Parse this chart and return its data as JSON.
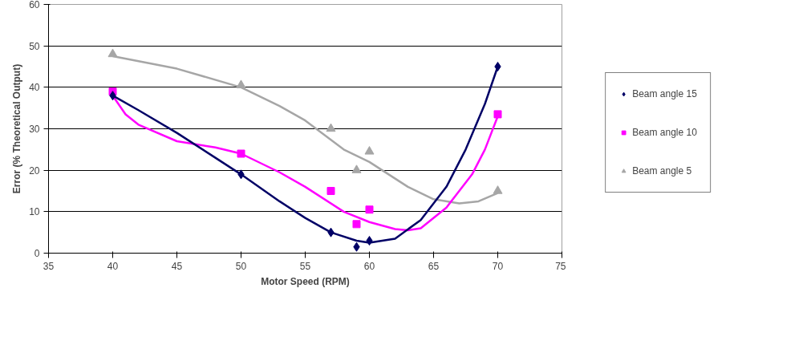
{
  "chart_data": {
    "type": "scatter",
    "xlabel": "Motor Speed (RPM)",
    "ylabel": "Error (% Theoretical Output)",
    "xlim": [
      35,
      75
    ],
    "ylim": [
      0,
      60
    ],
    "xticks": [
      35,
      40,
      45,
      50,
      55,
      60,
      65,
      70,
      75
    ],
    "yticks": [
      0,
      10,
      20,
      30,
      40,
      50,
      60
    ],
    "grid": "y",
    "legend": "right",
    "series": [
      {
        "name": "Beam angle 15",
        "color": "#000066",
        "marker": "diamond",
        "x": [
          40,
          50,
          57,
          59,
          60,
          70
        ],
        "values": [
          38,
          19,
          5,
          1.5,
          3,
          45
        ]
      },
      {
        "name": "Beam angle 10",
        "color": "#ff00ff",
        "marker": "square",
        "x": [
          40,
          50,
          57,
          59,
          60,
          70
        ],
        "values": [
          39,
          24,
          15,
          7,
          10.5,
          33.5
        ]
      },
      {
        "name": "Beam angle 5",
        "color": "#a6a6a6",
        "marker": "triangle",
        "x": [
          40,
          50,
          57,
          59,
          60,
          70
        ],
        "values": [
          48,
          40.5,
          30,
          20,
          24.5,
          15
        ]
      },
      {
        "type": "line",
        "color": "#000066",
        "line_style": "solid",
        "x": [
          40,
          42,
          45,
          48,
          50,
          53,
          55,
          57,
          59,
          60,
          62,
          64,
          65,
          66,
          67.5,
          69,
          70
        ],
        "values": [
          38,
          34.5,
          29,
          23,
          19,
          12.5,
          8.5,
          5,
          3,
          2.5,
          3.5,
          8,
          12,
          16,
          25,
          36,
          45
        ]
      },
      {
        "type": "line",
        "color": "#ff00ff",
        "line_style": "solid",
        "x": [
          40,
          41,
          42,
          45,
          48,
          50,
          53,
          55,
          58,
          60,
          62,
          63,
          64,
          66,
          68,
          69,
          70
        ],
        "values": [
          38,
          33.5,
          31,
          27,
          25.5,
          24,
          19.5,
          16,
          10,
          7.5,
          5.8,
          5.5,
          6,
          11,
          19,
          25,
          33
        ]
      },
      {
        "type": "line",
        "color": "#a6a6a6",
        "line_style": "solid",
        "x": [
          40,
          45,
          50,
          53,
          55,
          58,
          60,
          63,
          65,
          67,
          68.5,
          70
        ],
        "values": [
          47.5,
          44.5,
          40,
          35.5,
          32,
          25,
          22,
          16,
          13,
          12,
          12.5,
          14.5
        ]
      }
    ]
  }
}
